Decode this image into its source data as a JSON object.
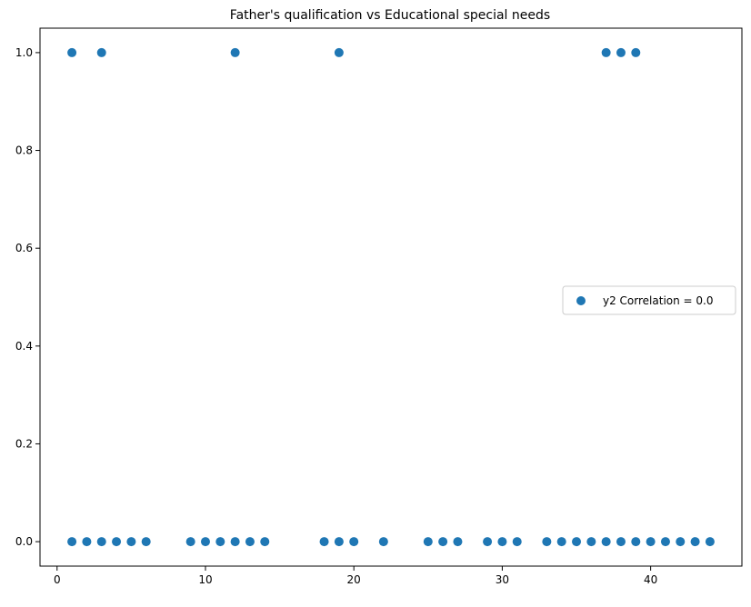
{
  "chart_data": {
    "type": "scatter",
    "title": "Father's qualification vs Educational special needs",
    "xlabel": "",
    "ylabel": "",
    "xlim": [
      -1.15,
      46.15
    ],
    "ylim": [
      -0.05,
      1.05
    ],
    "xticks": [
      0,
      10,
      20,
      30,
      40
    ],
    "yticks": [
      0.0,
      0.2,
      0.4,
      0.6,
      0.8,
      1.0
    ],
    "xtick_labels": [
      "0",
      "10",
      "20",
      "30",
      "40"
    ],
    "ytick_labels": [
      "0.0",
      "0.2",
      "0.4",
      "0.6",
      "0.8",
      "1.0"
    ],
    "grid": false,
    "legend_position": "center-right",
    "color": "#1f77b4",
    "series": [
      {
        "name": "y2 Correlation = 0.0",
        "points": [
          [
            1,
            1
          ],
          [
            3,
            1
          ],
          [
            12,
            1
          ],
          [
            19,
            1
          ],
          [
            37,
            1
          ],
          [
            38,
            1
          ],
          [
            39,
            1
          ],
          [
            1,
            0
          ],
          [
            2,
            0
          ],
          [
            3,
            0
          ],
          [
            4,
            0
          ],
          [
            5,
            0
          ],
          [
            6,
            0
          ],
          [
            9,
            0
          ],
          [
            10,
            0
          ],
          [
            11,
            0
          ],
          [
            12,
            0
          ],
          [
            13,
            0
          ],
          [
            14,
            0
          ],
          [
            18,
            0
          ],
          [
            19,
            0
          ],
          [
            20,
            0
          ],
          [
            22,
            0
          ],
          [
            25,
            0
          ],
          [
            26,
            0
          ],
          [
            27,
            0
          ],
          [
            29,
            0
          ],
          [
            30,
            0
          ],
          [
            31,
            0
          ],
          [
            33,
            0
          ],
          [
            34,
            0
          ],
          [
            35,
            0
          ],
          [
            36,
            0
          ],
          [
            37,
            0
          ],
          [
            38,
            0
          ],
          [
            39,
            0
          ],
          [
            40,
            0
          ],
          [
            41,
            0
          ],
          [
            42,
            0
          ],
          [
            43,
            0
          ],
          [
            44,
            0
          ]
        ]
      }
    ]
  }
}
